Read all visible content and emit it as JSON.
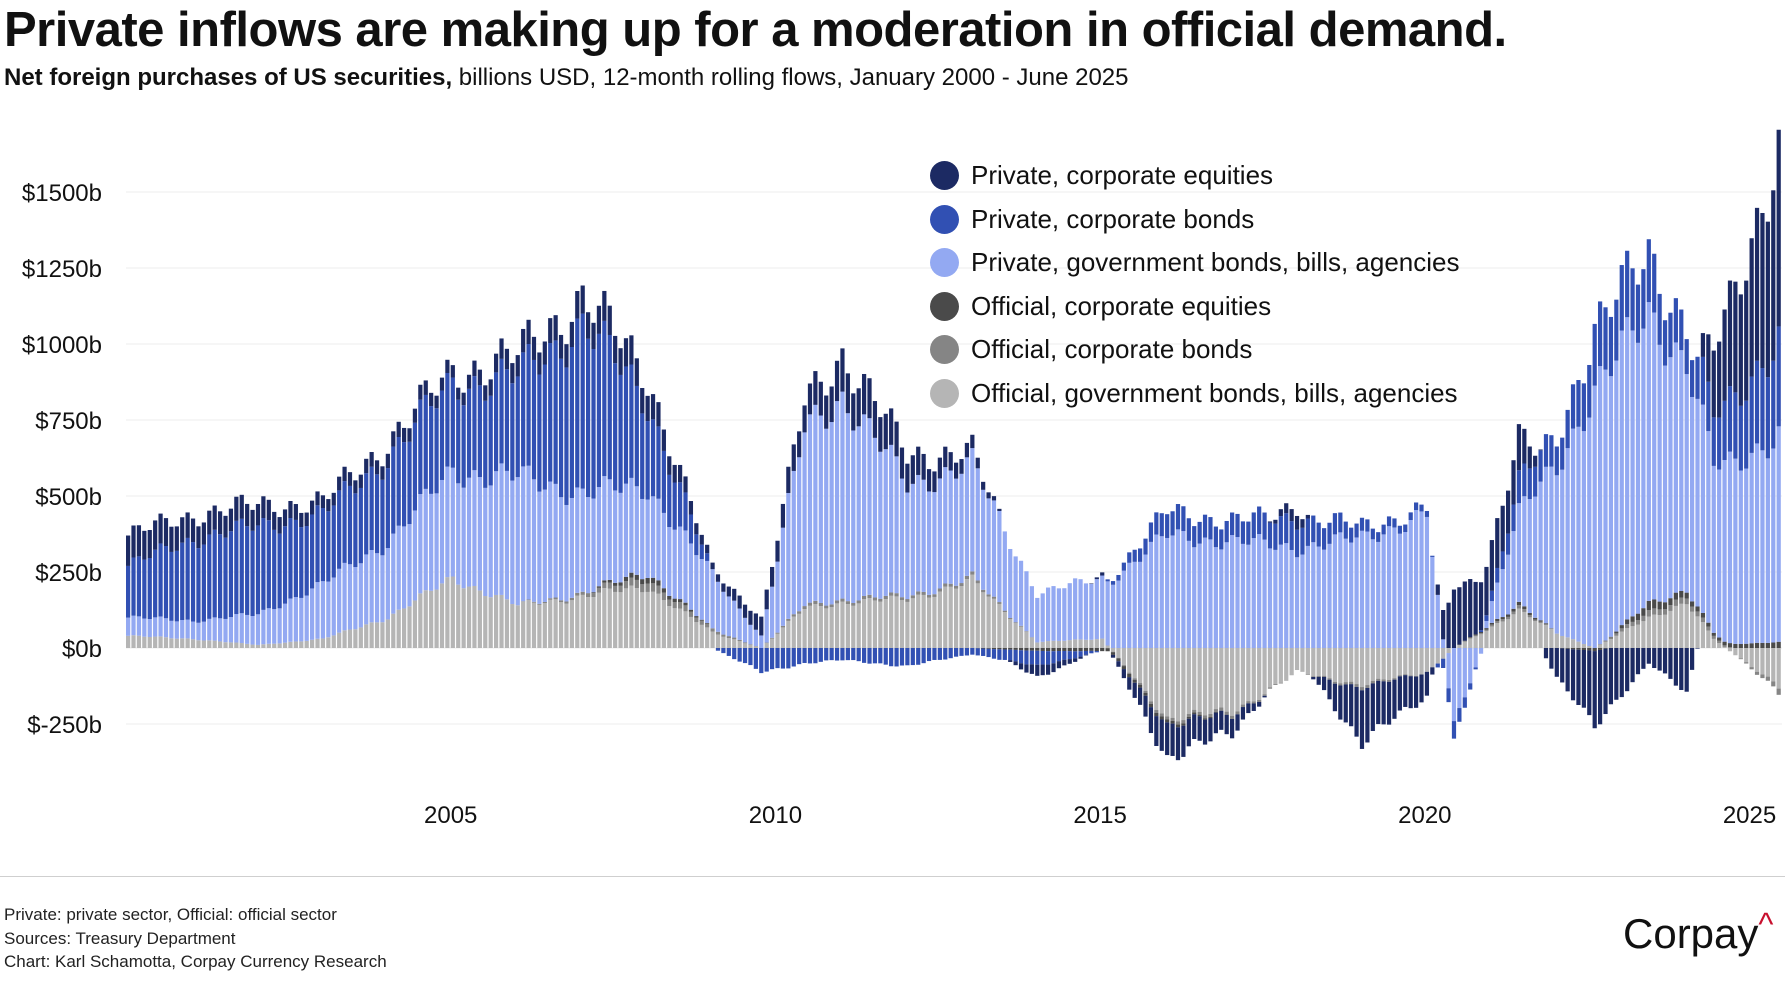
{
  "title": "Private inflows are making up for a moderation in official demand.",
  "subtitle_bold": "Net foreign purchases of US securities,",
  "subtitle_rest": " billions USD, 12-month rolling flows, January 2000 - June 2025",
  "legend": [
    {
      "label": "Private, corporate equities",
      "color": "#1c2a63"
    },
    {
      "label": "Private, corporate bonds",
      "color": "#3150b3"
    },
    {
      "label": "Private, government bonds, bills, agencies",
      "color": "#93a9f2"
    },
    {
      "label": "Official, corporate equities",
      "color": "#4a4a4a"
    },
    {
      "label": "Official, corporate bonds",
      "color": "#858585"
    },
    {
      "label": "Official, government bonds, bills, agencies",
      "color": "#b5b5b5"
    }
  ],
  "footer": {
    "note": "Private: private sector, Official: official sector",
    "sources": "Sources: Treasury Department",
    "credit": "Chart: Karl Schamotta, Corpay Currency Research"
  },
  "brand": {
    "name": "Corpay",
    "mark": "^"
  },
  "chart_data": {
    "type": "bar",
    "stacked": true,
    "x_start": "2000-01",
    "x_end": "2025-06",
    "x_ticks": [
      "2005",
      "2010",
      "2015",
      "2020",
      "2025"
    ],
    "y_ticks": [
      "$1500b",
      "$1250b",
      "$1000b",
      "$750b",
      "$500b",
      "$250b",
      "$0b",
      "$-250b"
    ],
    "y_tick_values": [
      1500,
      1250,
      1000,
      750,
      500,
      250,
      0,
      -250
    ],
    "ylim": [
      -450,
      1650
    ],
    "grid": true,
    "legend_position": "top-right",
    "series_names": [
      "Private, corporate equities",
      "Private, corporate bonds",
      "Private, government bonds, bills, agencies",
      "Official, corporate equities",
      "Official, corporate bonds",
      "Official, government bonds, bills, agencies"
    ],
    "approx_yearly_components": [
      {
        "date": "2000-01",
        "offg": 40,
        "offc": 0,
        "offe": 0,
        "pgov": 60,
        "pcb": 170,
        "peq": 100
      },
      {
        "date": "2001-01",
        "offg": 30,
        "offc": 0,
        "offe": 0,
        "pgov": 60,
        "pcb": 270,
        "peq": 80
      },
      {
        "date": "2002-01",
        "offg": 10,
        "offc": 0,
        "offe": 0,
        "pgov": 100,
        "pcb": 290,
        "peq": 70
      },
      {
        "date": "2003-01",
        "offg": 30,
        "offc": 0,
        "offe": 0,
        "pgov": 180,
        "pcb": 230,
        "peq": 40
      },
      {
        "date": "2004-01",
        "offg": 100,
        "offc": 0,
        "offe": 0,
        "pgov": 250,
        "pcb": 280,
        "peq": 50
      },
      {
        "date": "2005-01",
        "offg": 230,
        "offc": 0,
        "offe": 0,
        "pgov": 350,
        "pcb": 290,
        "peq": 40
      },
      {
        "date": "2006-01",
        "offg": 140,
        "offc": 0,
        "offe": 0,
        "pgov": 420,
        "pcb": 330,
        "peq": 70
      },
      {
        "date": "2007-01",
        "offg": 170,
        "offc": 10,
        "offe": 0,
        "pgov": 330,
        "pcb": 560,
        "peq": 90
      },
      {
        "date": "2008-01",
        "offg": 200,
        "offc": 30,
        "offe": 20,
        "pgov": 280,
        "pcb": 280,
        "peq": 90
      },
      {
        "date": "2009-01",
        "offg": 50,
        "offc": 10,
        "offe": 0,
        "pgov": 180,
        "pcb": 0,
        "peq": 20
      },
      {
        "date": "2009-10",
        "offg": 0,
        "offc": 0,
        "offe": 0,
        "pgov": 40,
        "pcb": -80,
        "peq": 60
      },
      {
        "date": "2010-06",
        "offg": 130,
        "offc": 10,
        "offe": 0,
        "pgov": 580,
        "pcb": -50,
        "peq": 90
      },
      {
        "date": "2011-01",
        "offg": 150,
        "offc": 10,
        "offe": 0,
        "pgov": 670,
        "pcb": -40,
        "peq": 140
      },
      {
        "date": "2012-01",
        "offg": 160,
        "offc": 10,
        "offe": 0,
        "pgov": 370,
        "pcb": -60,
        "peq": 100
      },
      {
        "date": "2013-01",
        "offg": 220,
        "offc": 10,
        "offe": 0,
        "pgov": 370,
        "pcb": -20,
        "peq": 40
      },
      {
        "date": "2014-01",
        "offg": 20,
        "offc": 0,
        "offe": -10,
        "pgov": 160,
        "pcb": -50,
        "peq": -40
      },
      {
        "date": "2015-01",
        "offg": 30,
        "offc": 0,
        "offe": -10,
        "pgov": 200,
        "pcb": 0,
        "peq": 10
      },
      {
        "date": "2016-01",
        "offg": -230,
        "offc": -10,
        "offe": -10,
        "pgov": 370,
        "pcb": 80,
        "peq": -110
      },
      {
        "date": "2017-01",
        "offg": -210,
        "offc": -10,
        "offe": 0,
        "pgov": 350,
        "pcb": 70,
        "peq": -60
      },
      {
        "date": "2018-01",
        "offg": -80,
        "offc": 0,
        "offe": 0,
        "pgov": 330,
        "pcb": 100,
        "peq": 50
      },
      {
        "date": "2019-01",
        "offg": -120,
        "offc": -10,
        "offe": 0,
        "pgov": 360,
        "pcb": 40,
        "peq": -180
      },
      {
        "date": "2020-01",
        "offg": -80,
        "offc": 0,
        "offe": 0,
        "pgov": 440,
        "pcb": 20,
        "peq": -80
      },
      {
        "date": "2020-06",
        "offg": 0,
        "offc": 0,
        "offe": 0,
        "pgov": -250,
        "pcb": -60,
        "peq": 200
      },
      {
        "date": "2021-06",
        "offg": 120,
        "offc": 10,
        "offe": 10,
        "pgov": 300,
        "pcb": 100,
        "peq": 140
      },
      {
        "date": "2022-01",
        "offg": 50,
        "offc": 0,
        "offe": 0,
        "pgov": 550,
        "pcb": 100,
        "peq": -100
      },
      {
        "date": "2022-08",
        "offg": 0,
        "offc": 0,
        "offe": -10,
        "pgov": 850,
        "pcb": 200,
        "peq": -250
      },
      {
        "date": "2023-06",
        "offg": 100,
        "offc": 20,
        "offe": 30,
        "pgov": 950,
        "pcb": 200,
        "peq": -50
      },
      {
        "date": "2024-01",
        "offg": 150,
        "offc": 20,
        "offe": 20,
        "pgov": 750,
        "pcb": 120,
        "peq": -150
      },
      {
        "date": "2024-06",
        "offg": 30,
        "offc": 10,
        "offe": 10,
        "pgov": 550,
        "pcb": 160,
        "peq": 220
      },
      {
        "date": "2025-06",
        "offg": -130,
        "offc": -20,
        "offe": 20,
        "pgov": 690,
        "pcb": 320,
        "peq": 630
      }
    ]
  }
}
